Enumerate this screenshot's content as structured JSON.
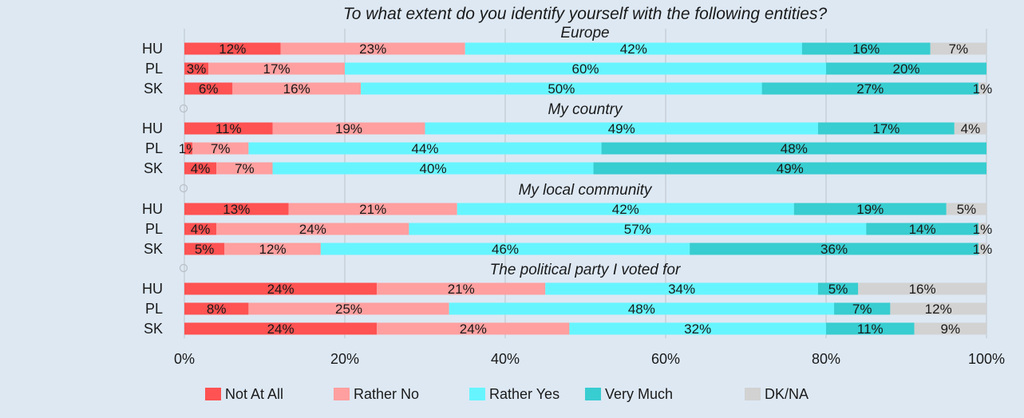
{
  "chart_data": {
    "type": "bar",
    "orientation": "horizontal-stacked",
    "title": "To what extent do you identify yourself with the following entities?",
    "xlim": [
      0,
      100
    ],
    "x_ticks": [
      "0%",
      "20%",
      "40%",
      "60%",
      "80%",
      "100%"
    ],
    "grid": true,
    "legend_position": "bottom",
    "series": [
      {
        "name": "Not At All",
        "color": "#ff5252"
      },
      {
        "name": "Rather No",
        "color": "#ff9f9f"
      },
      {
        "name": "Rather Yes",
        "color": "#66f5ff"
      },
      {
        "name": "Very Much",
        "color": "#38cdd0"
      },
      {
        "name": "DK/NA",
        "color": "#d2d2d2"
      }
    ],
    "groups": [
      {
        "label": "Europe",
        "rows": [
          {
            "category": "HU",
            "values": [
              12,
              23,
              42,
              16,
              7
            ]
          },
          {
            "category": "PL",
            "values": [
              3,
              17,
              60,
              20,
              0
            ]
          },
          {
            "category": "SK",
            "values": [
              6,
              16,
              50,
              27,
              1
            ]
          }
        ]
      },
      {
        "label": "My country",
        "rows": [
          {
            "category": "HU",
            "values": [
              11,
              19,
              49,
              17,
              4
            ]
          },
          {
            "category": "PL",
            "values": [
              1,
              7,
              44,
              48,
              0
            ]
          },
          {
            "category": "SK",
            "values": [
              4,
              7,
              40,
              49,
              0
            ]
          }
        ]
      },
      {
        "label": "My local community",
        "rows": [
          {
            "category": "HU",
            "values": [
              13,
              21,
              42,
              19,
              5
            ]
          },
          {
            "category": "PL",
            "values": [
              4,
              24,
              57,
              14,
              1
            ]
          },
          {
            "category": "SK",
            "values": [
              5,
              12,
              46,
              36,
              1
            ]
          }
        ]
      },
      {
        "label": "The political party I voted for",
        "rows": [
          {
            "category": "HU",
            "values": [
              24,
              21,
              34,
              5,
              16
            ]
          },
          {
            "category": "PL",
            "values": [
              8,
              25,
              48,
              7,
              12
            ]
          },
          {
            "category": "SK",
            "values": [
              24,
              24,
              32,
              11,
              9
            ]
          }
        ]
      }
    ]
  }
}
